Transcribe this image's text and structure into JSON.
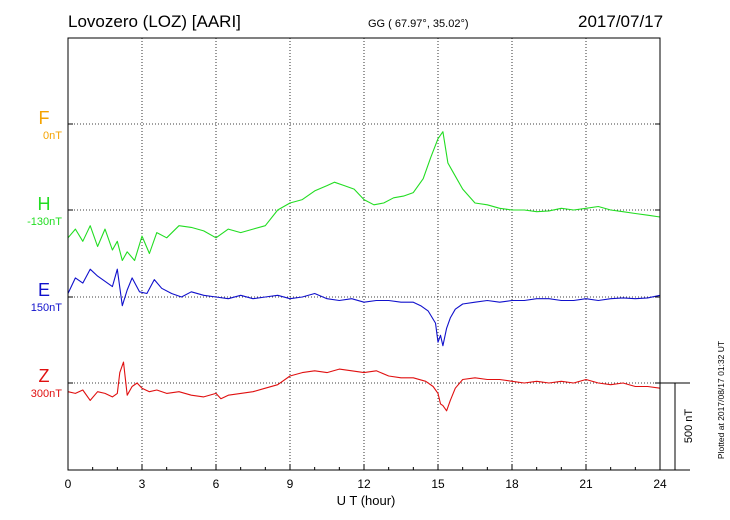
{
  "header": {
    "station": "Lovozero (LOZ)  [AARI]",
    "coords": "GG ( 67.97°,  35.02°)",
    "date": "2017/07/17"
  },
  "side_note": "Plotted at 2017/08/17 01:32 UT",
  "scale_bar": {
    "label": "500 nT",
    "value_nT": 500
  },
  "colors": {
    "F": "#f5a300",
    "H": "#22dd22",
    "E": "#1010cc",
    "Z": "#e01010",
    "axis": "#000000"
  },
  "chart_data": {
    "type": "line",
    "title": "Lovozero (LOZ)  [AARI]",
    "xlabel": "U T (hour)",
    "xlim": [
      0,
      24
    ],
    "xticks": [
      "0",
      "3",
      "6",
      "9",
      "12",
      "15",
      "18",
      "21",
      "24"
    ],
    "grid": true,
    "y_unit": "nT",
    "series": [
      {
        "name": "F",
        "baseline_label": "0nT",
        "values": []
      },
      {
        "name": "H",
        "baseline_label": "-130nT",
        "x": [
          0,
          0.3,
          0.6,
          0.9,
          1.2,
          1.5,
          1.8,
          2.0,
          2.2,
          2.4,
          2.7,
          3.0,
          3.3,
          3.6,
          4.0,
          4.5,
          5.0,
          5.5,
          6.0,
          6.5,
          7.0,
          7.5,
          8.0,
          8.5,
          9.0,
          9.5,
          10.0,
          10.5,
          10.8,
          11.2,
          11.6,
          12.0,
          12.4,
          12.8,
          13.2,
          13.6,
          14.0,
          14.4,
          14.7,
          15.0,
          15.2,
          15.4,
          15.6,
          16.0,
          16.5,
          17.0,
          17.5,
          18.0,
          18.5,
          19.0,
          19.5,
          20.0,
          20.5,
          21.0,
          21.5,
          22.0,
          22.5,
          23.0,
          23.5,
          24.0
        ],
        "values": [
          -160,
          -110,
          -180,
          -90,
          -210,
          -110,
          -230,
          -180,
          -290,
          -240,
          -290,
          -150,
          -250,
          -130,
          -160,
          -90,
          -100,
          -120,
          -160,
          -110,
          -130,
          -110,
          -90,
          0,
          40,
          60,
          110,
          140,
          160,
          140,
          120,
          60,
          30,
          40,
          70,
          80,
          100,
          180,
          300,
          410,
          450,
          270,
          220,
          120,
          40,
          30,
          10,
          0,
          0,
          -10,
          -5,
          10,
          0,
          10,
          20,
          0,
          -10,
          -20,
          -30,
          -40
        ]
      },
      {
        "name": "E",
        "baseline_label": "150nT",
        "x": [
          0,
          0.3,
          0.6,
          0.9,
          1.2,
          1.5,
          1.8,
          2.0,
          2.2,
          2.4,
          2.6,
          2.9,
          3.2,
          3.5,
          3.8,
          4.2,
          4.6,
          5.0,
          5.5,
          6.0,
          6.5,
          7.0,
          7.5,
          8.0,
          8.5,
          9.0,
          9.5,
          10.0,
          10.5,
          11.0,
          11.5,
          12.0,
          12.5,
          13.0,
          13.5,
          14.0,
          14.3,
          14.6,
          14.9,
          15.0,
          15.1,
          15.2,
          15.35,
          15.5,
          15.7,
          16.0,
          16.5,
          17.0,
          17.5,
          18.0,
          18.5,
          19.0,
          19.5,
          20.0,
          20.5,
          21.0,
          21.5,
          22.0,
          22.5,
          23.0,
          23.5,
          24.0
        ],
        "values": [
          20,
          110,
          80,
          160,
          120,
          90,
          60,
          160,
          -50,
          40,
          110,
          30,
          20,
          100,
          50,
          20,
          0,
          30,
          10,
          0,
          -10,
          10,
          -10,
          0,
          10,
          -10,
          0,
          20,
          -10,
          -20,
          -10,
          -30,
          -20,
          -20,
          -30,
          -30,
          -50,
          -80,
          -150,
          -260,
          -220,
          -280,
          -180,
          -120,
          -70,
          -40,
          -30,
          -20,
          -30,
          -20,
          -20,
          -10,
          -10,
          -20,
          -20,
          -10,
          -20,
          -10,
          -5,
          -10,
          -5,
          10
        ]
      },
      {
        "name": "Z",
        "baseline_label": "300nT",
        "x": [
          0,
          0.3,
          0.6,
          0.9,
          1.2,
          1.5,
          1.8,
          2.0,
          2.1,
          2.25,
          2.4,
          2.6,
          2.8,
          3.0,
          3.3,
          3.6,
          4.0,
          4.5,
          5.0,
          5.5,
          6.0,
          6.2,
          6.5,
          7.0,
          7.5,
          8.0,
          8.5,
          9.0,
          9.5,
          10.0,
          10.5,
          11.0,
          11.5,
          12.0,
          12.5,
          13.0,
          13.5,
          14.0,
          14.5,
          14.8,
          15.0,
          15.1,
          15.2,
          15.35,
          15.5,
          15.7,
          16.0,
          16.5,
          17.0,
          17.5,
          18.0,
          18.5,
          19.0,
          19.5,
          20.0,
          20.5,
          21.0,
          21.5,
          22.0,
          22.5,
          23.0,
          23.5,
          24.0
        ],
        "values": [
          -50,
          -60,
          -40,
          -100,
          -50,
          -60,
          -80,
          -60,
          60,
          120,
          -70,
          -20,
          0,
          -30,
          -50,
          -40,
          -60,
          -50,
          -70,
          -80,
          -60,
          -90,
          -70,
          -60,
          -50,
          -30,
          -10,
          40,
          60,
          70,
          60,
          80,
          70,
          60,
          70,
          40,
          30,
          30,
          10,
          -20,
          -60,
          -120,
          -130,
          -160,
          -100,
          -30,
          20,
          30,
          20,
          20,
          10,
          0,
          10,
          0,
          10,
          0,
          20,
          0,
          -10,
          0,
          -20,
          -20,
          -30
        ]
      }
    ]
  }
}
